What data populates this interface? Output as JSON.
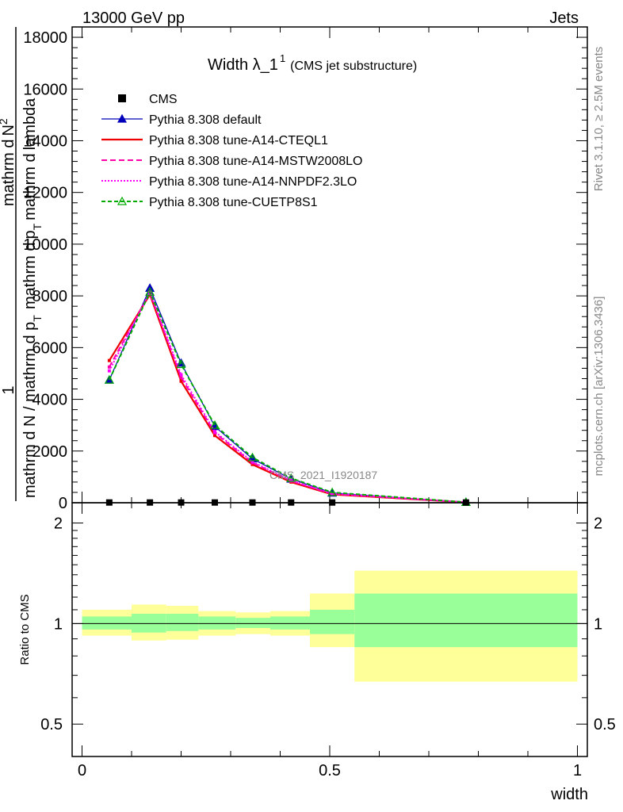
{
  "header": {
    "left": "13000 GeV pp",
    "right": "Jets"
  },
  "side": {
    "rivet": "Rivet 3.1.10, ≥ 2.5M events",
    "mcplots": "mcplots.cern.ch [arXiv:1306.3436]"
  },
  "watermark": "CMS_2021_I1920187",
  "chart_data": [
    {
      "type": "line",
      "title_main": "Width λ_1",
      "title_sup": "1",
      "title_sub": "(CMS jet substructure)",
      "ylabel_top_a": "mathrm d",
      "ylabel_top_b": "N",
      "ylabel_top_sup": "2",
      "ylabel_mid_a": "mathrm d",
      "ylabel_mid_b": "p",
      "ylabel_mid_sub": "T",
      "ylabel_mid_c": "mathrm d",
      "ylabel_mid_d": "lambda",
      "ylabel_one": "1",
      "ylabel_bottom": "mathrm d N / mathrm d p",
      "ylabel_bottom_sub": "T",
      "ylim": [
        0,
        18400
      ],
      "yticks": [
        0,
        2000,
        4000,
        6000,
        8000,
        10000,
        12000,
        14000,
        16000,
        18000
      ],
      "ytick_labels": [
        "0",
        "2000",
        "4000",
        "6000",
        "8000",
        "10000",
        "12000",
        "14000",
        "16000",
        "18000"
      ],
      "xlim": [
        -0.02,
        1.02
      ],
      "series": [
        {
          "name": "CMS",
          "color": "#000000",
          "style": "data",
          "x": [
            0.055,
            0.137,
            0.2,
            0.268,
            0.344,
            0.422,
            0.505,
            0.775
          ],
          "y": [
            10,
            10,
            10,
            10,
            10,
            10,
            10,
            10
          ]
        },
        {
          "name": "Pythia 8.308 default",
          "color": "#0000bb",
          "style": "solid-triangle",
          "x": [
            0.055,
            0.137,
            0.2,
            0.268,
            0.344,
            0.422,
            0.505,
            0.775
          ],
          "y": [
            4750,
            8300,
            5400,
            2950,
            1700,
            920,
            380,
            20
          ]
        },
        {
          "name": "Pythia 8.308 tune-A14-CTEQL1",
          "color": "#ee0000",
          "style": "solid",
          "x": [
            0.055,
            0.137,
            0.2,
            0.268,
            0.344,
            0.422,
            0.505,
            0.775
          ],
          "y": [
            5500,
            8050,
            4700,
            2600,
            1480,
            800,
            320,
            18
          ]
        },
        {
          "name": "Pythia 8.308 tune-A14-MSTW2008LO",
          "color": "#ff00aa",
          "style": "dashed",
          "x": [
            0.055,
            0.137,
            0.2,
            0.268,
            0.344,
            0.422,
            0.505,
            0.775
          ],
          "y": [
            5250,
            8100,
            4850,
            2700,
            1550,
            840,
            340,
            18
          ]
        },
        {
          "name": "Pythia 8.308 tune-A14-NNPDF2.3LO",
          "color": "#ff00ff",
          "style": "dotted",
          "x": [
            0.055,
            0.137,
            0.2,
            0.268,
            0.344,
            0.422,
            0.505,
            0.775
          ],
          "y": [
            5100,
            8150,
            4950,
            2750,
            1580,
            860,
            350,
            18
          ]
        },
        {
          "name": "Pythia 8.308 tune-CUETP8S1",
          "color": "#00aa00",
          "style": "dashed-open-triangle",
          "x": [
            0.055,
            0.137,
            0.2,
            0.268,
            0.344,
            0.422,
            0.505,
            0.775
          ],
          "y": [
            4750,
            8150,
            5350,
            3000,
            1750,
            950,
            400,
            20
          ]
        }
      ]
    },
    {
      "type": "area",
      "ylabel": "Ratio to CMS",
      "xlabel": "width",
      "ylim": [
        0.4,
        2.3
      ],
      "yscale": "log",
      "yticks": [
        0.5,
        1,
        2
      ],
      "ytick_labels": [
        "0.5",
        "1",
        "2"
      ],
      "xlim": [
        -0.02,
        1.02
      ],
      "xticks": [
        0,
        0.5,
        1
      ],
      "xtick_labels": [
        "0",
        "0.5",
        "1"
      ],
      "bands": {
        "edges": [
          0.0,
          0.1,
          0.17,
          0.235,
          0.31,
          0.38,
          0.46,
          0.55,
          1.0
        ],
        "yellow_color": "#ffff99",
        "green_color": "#99ff99",
        "yellow_lo": [
          0.92,
          0.89,
          0.895,
          0.92,
          0.93,
          0.92,
          0.85,
          0.67
        ],
        "yellow_hi": [
          1.1,
          1.14,
          1.13,
          1.09,
          1.08,
          1.09,
          1.23,
          1.44
        ],
        "green_lo": [
          0.96,
          0.94,
          0.95,
          0.96,
          0.97,
          0.96,
          0.93,
          0.85
        ],
        "green_hi": [
          1.05,
          1.07,
          1.07,
          1.05,
          1.04,
          1.05,
          1.1,
          1.23
        ]
      }
    }
  ]
}
